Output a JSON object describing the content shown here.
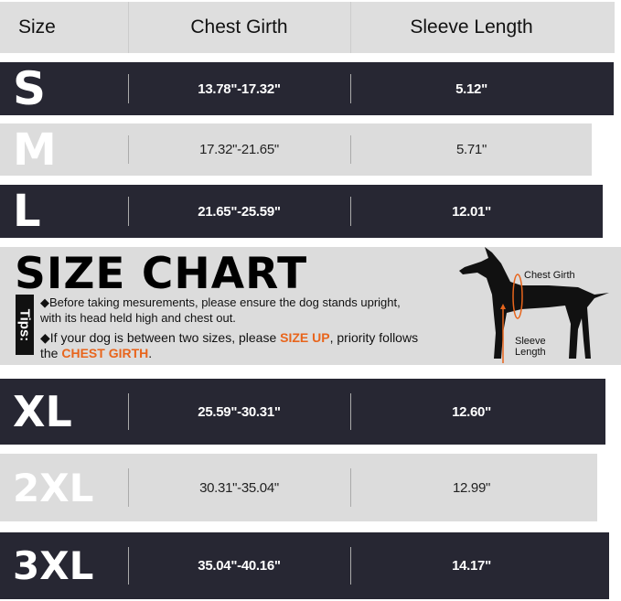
{
  "header": {
    "size": "Size",
    "chest": "Chest Girth",
    "sleeve": "Sleeve Length"
  },
  "rows": [
    {
      "size": "S",
      "chest": "13.78\"-17.32\"",
      "sleeve": "5.12\""
    },
    {
      "size": "M",
      "chest": "17.32\"-21.65\"",
      "sleeve": "5.71\""
    },
    {
      "size": "L",
      "chest": "21.65\"-25.59\"",
      "sleeve": "12.01\""
    },
    {
      "size": "XL",
      "chest": "25.59\"-30.31\"",
      "sleeve": "12.60\""
    },
    {
      "size": "2XL",
      "chest": "30.31\"-35.04\"",
      "sleeve": "12.99\""
    },
    {
      "size": "3XL",
      "chest": "35.04\"-40.16\"",
      "sleeve": "14.17\""
    }
  ],
  "banner": {
    "title": "SIZE CHART",
    "tips_label": "Tips:",
    "tip1": "Before taking mesurements, please ensure the dog stands upright, with its head held high and chest out.",
    "tip2_a": "If your dog is between two sizes, please ",
    "tip2_b": "SIZE UP",
    "tip2_c": ", priority follows the ",
    "tip2_d": "CHEST GIRTH",
    "tip2_e": ".",
    "diagram_chest": "Chest Girth",
    "diagram_sleeve": "Sleeve Length"
  },
  "colors": {
    "dark": "#272733",
    "light": "#dcdcdc",
    "accent": "#e8651c"
  }
}
